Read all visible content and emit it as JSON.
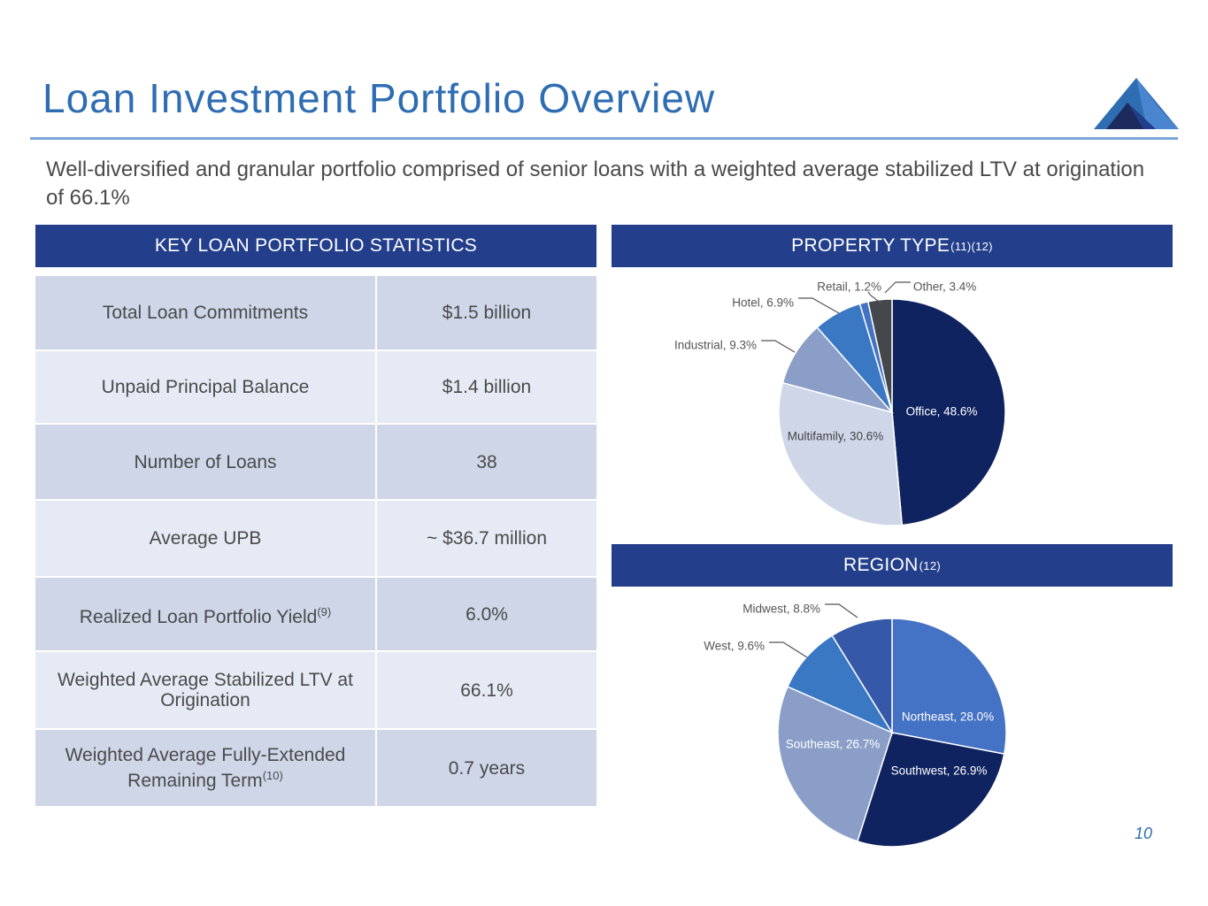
{
  "title": "Loan Investment Portfolio Overview",
  "subtitle": "Well-diversified and granular portfolio comprised of senior loans with a weighted average stabilized LTV at origination of 66.1%",
  "page_number": "10",
  "stats": {
    "header": "KEY LOAN PORTFOLIO STATISTICS",
    "rows": [
      {
        "label": "Total Loan Commitments",
        "value": "$1.5 billion"
      },
      {
        "label": "Unpaid Principal Balance",
        "value": "$1.4 billion"
      },
      {
        "label": "Number of Loans",
        "value": "38"
      },
      {
        "label": "Average UPB",
        "value": "~ $36.7 million"
      },
      {
        "label": "Realized Loan Portfolio Yield",
        "label_sup": "(9)",
        "value": "6.0%"
      },
      {
        "label": "Weighted Average Stabilized LTV at Origination",
        "value": "66.1%"
      },
      {
        "label": "Weighted Average Fully-Extended Remaining Term",
        "label_sup": "(10)",
        "value": "0.7 years"
      }
    ]
  },
  "property_header": {
    "text": "PROPERTY TYPE",
    "sup": "(11)(12)"
  },
  "region_header": {
    "text": "REGION",
    "sup": "(12)"
  },
  "colors": {
    "header_bg": "#233e8b",
    "title": "#2f6db3",
    "row_dark": "#ced6e8",
    "row_light": "#e6eaf4"
  },
  "chart_data": [
    {
      "type": "pie",
      "title": "PROPERTY TYPE",
      "categories": [
        "Office",
        "Multifamily",
        "Industrial",
        "Hotel",
        "Retail",
        "Other"
      ],
      "values": [
        48.6,
        30.6,
        9.3,
        6.9,
        1.2,
        3.4
      ],
      "labels": [
        "Office, 48.6%",
        "Multifamily, 30.6%",
        "Industrial, 9.3%",
        "Hotel, 6.9%",
        "Retail, 1.2%",
        "Other, 3.4%"
      ],
      "colors": [
        "#0f2360",
        "#cfd6e8",
        "#8a9ec8",
        "#3a78c4",
        "#4472c4",
        "#44484c"
      ]
    },
    {
      "type": "pie",
      "title": "REGION",
      "categories": [
        "Northeast",
        "Southwest",
        "Southeast",
        "West",
        "Midwest"
      ],
      "values": [
        28.0,
        26.9,
        26.7,
        9.6,
        8.8
      ],
      "labels": [
        "Northeast, 28.0%",
        "Southwest, 26.9%",
        "Southeast, 26.7%",
        "West, 9.6%",
        "Midwest, 8.8%"
      ],
      "colors": [
        "#4472c4",
        "#0f2360",
        "#8a9ec8",
        "#3a78c4",
        "#3558a8"
      ]
    }
  ]
}
